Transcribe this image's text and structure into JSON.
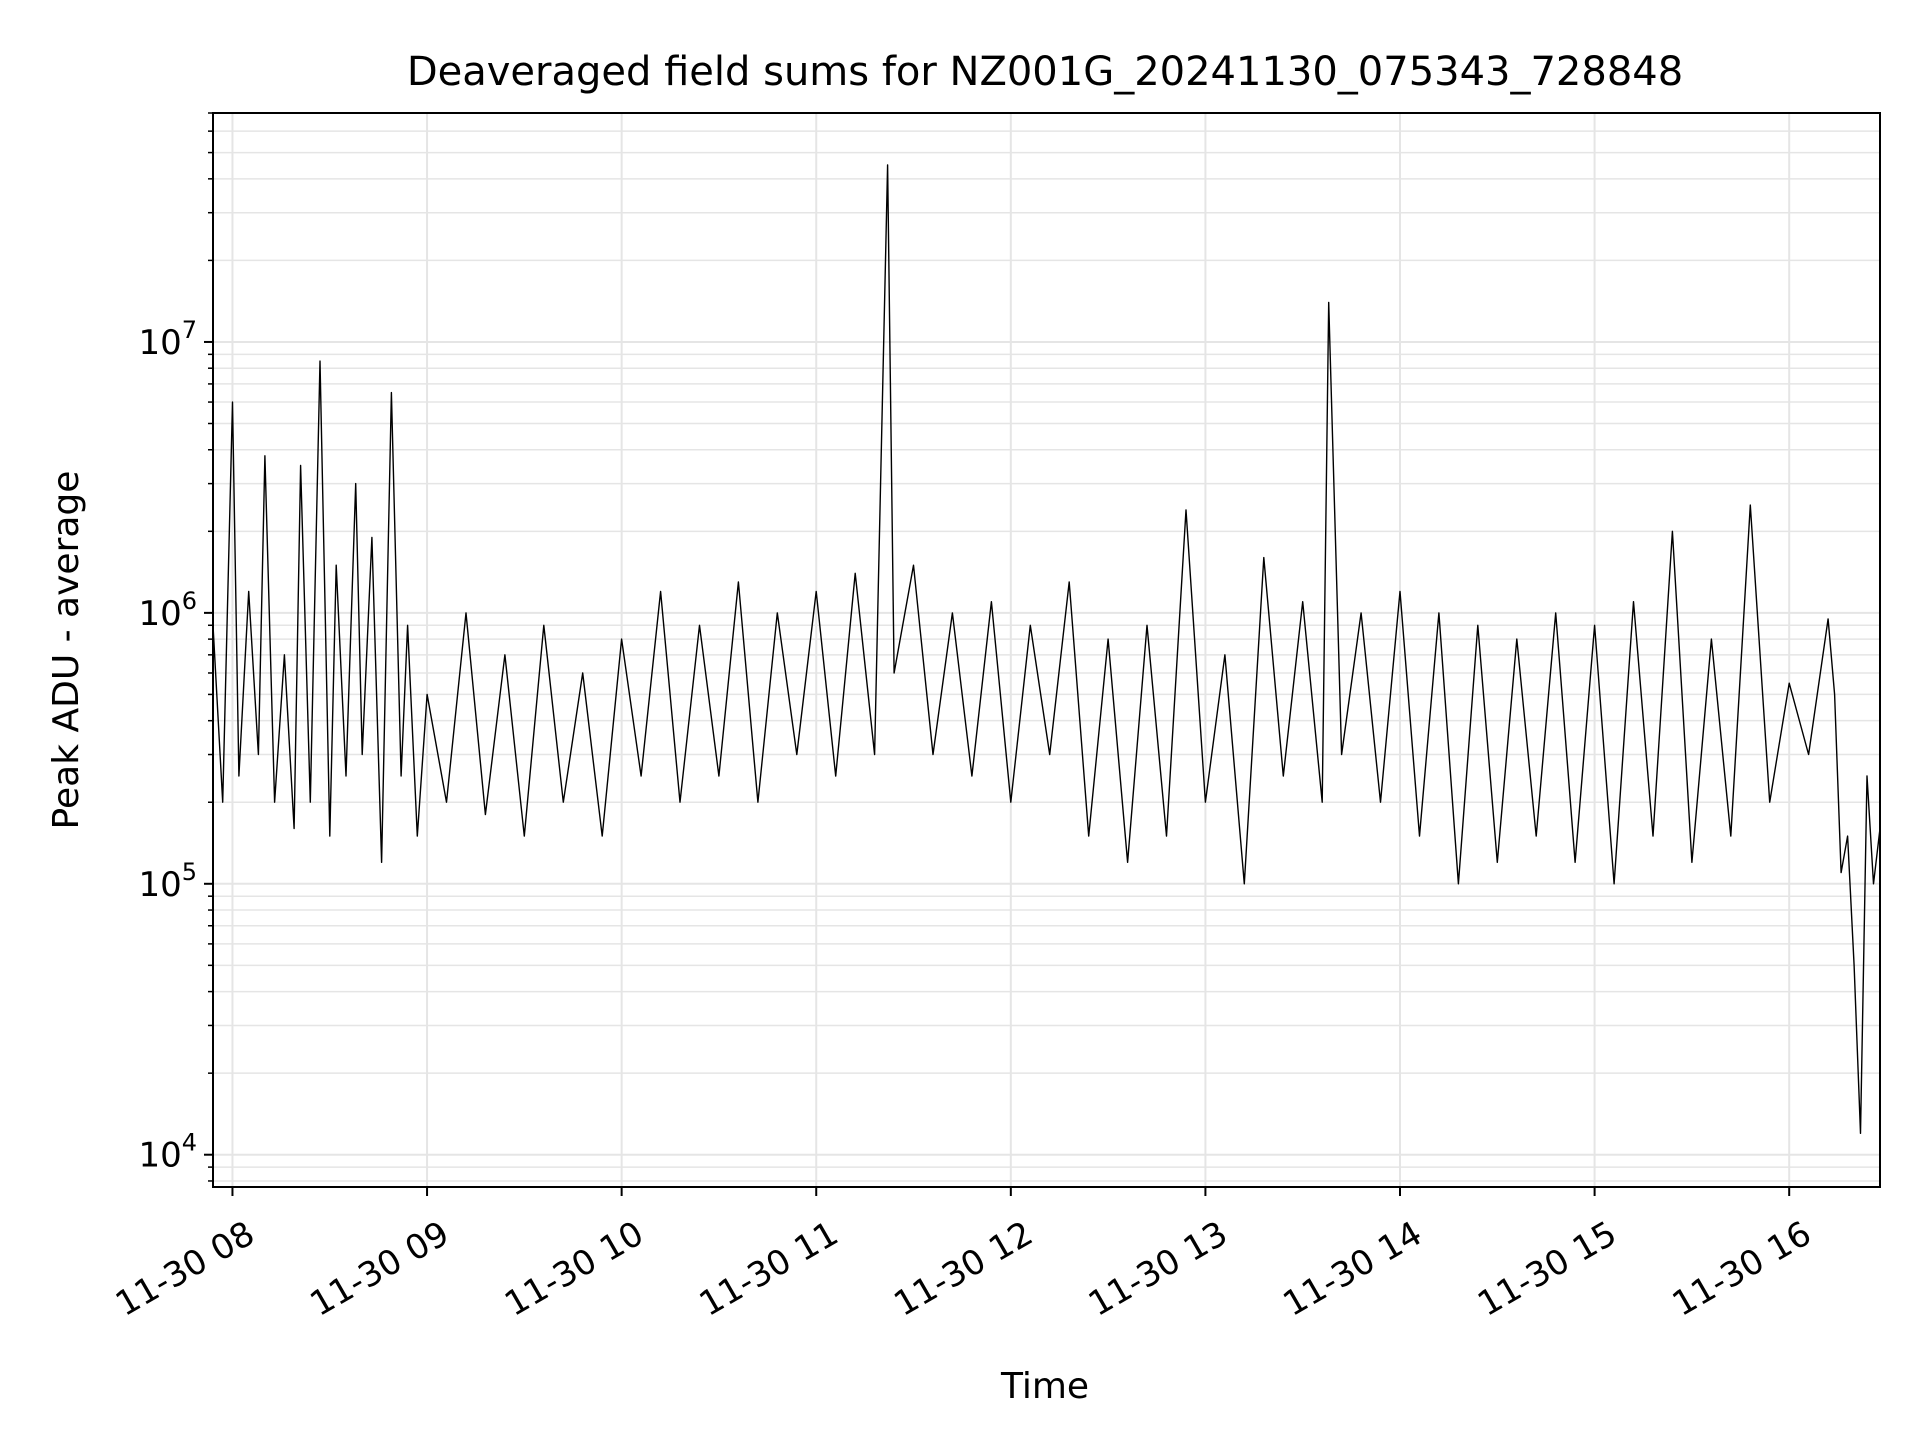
{
  "chart_data": {
    "type": "line",
    "title": "Deaveraged field sums for NZ001G_20241130_075343_728848",
    "xlabel": "Time",
    "ylabel": "Peak ADU - average",
    "y_scale": "log",
    "ylim": [
      7600,
      70000000
    ],
    "xlim": [
      "2024-11-30 07:54",
      "2024-11-30 16:28"
    ],
    "grid": true,
    "grid_minor": true,
    "line_color": "#000000",
    "grid_color": "#e5e5e5",
    "x_ticks": [
      {
        "value": "2024-11-30 08:00",
        "label": "11-30 08"
      },
      {
        "value": "2024-11-30 09:00",
        "label": "11-30 09"
      },
      {
        "value": "2024-11-30 10:00",
        "label": "11-30 10"
      },
      {
        "value": "2024-11-30 11:00",
        "label": "11-30 11"
      },
      {
        "value": "2024-11-30 12:00",
        "label": "11-30 12"
      },
      {
        "value": "2024-11-30 13:00",
        "label": "11-30 13"
      },
      {
        "value": "2024-11-30 14:00",
        "label": "11-30 14"
      },
      {
        "value": "2024-11-30 15:00",
        "label": "11-30 15"
      },
      {
        "value": "2024-11-30 16:00",
        "label": "11-30 16"
      }
    ],
    "y_ticks": [
      {
        "value": 10000,
        "base": "10",
        "exp": "4"
      },
      {
        "value": 100000,
        "base": "10",
        "exp": "5"
      },
      {
        "value": 1000000,
        "base": "10",
        "exp": "6"
      },
      {
        "value": 10000000,
        "base": "10",
        "exp": "7"
      }
    ],
    "series": [
      {
        "x": [
          "2024-11-30 07:54",
          "2024-11-30 07:57",
          "2024-11-30 08:00",
          "2024-11-30 08:02",
          "2024-11-30 08:05",
          "2024-11-30 08:08",
          "2024-11-30 08:10",
          "2024-11-30 08:13",
          "2024-11-30 08:16",
          "2024-11-30 08:19",
          "2024-11-30 08:21",
          "2024-11-30 08:24",
          "2024-11-30 08:27",
          "2024-11-30 08:30",
          "2024-11-30 08:32",
          "2024-11-30 08:35",
          "2024-11-30 08:38",
          "2024-11-30 08:40",
          "2024-11-30 08:43",
          "2024-11-30 08:46",
          "2024-11-30 08:49",
          "2024-11-30 08:52",
          "2024-11-30 08:54",
          "2024-11-30 08:57",
          "2024-11-30 09:00",
          "2024-11-30 09:06",
          "2024-11-30 09:12",
          "2024-11-30 09:18",
          "2024-11-30 09:24",
          "2024-11-30 09:30",
          "2024-11-30 09:36",
          "2024-11-30 09:42",
          "2024-11-30 09:48",
          "2024-11-30 09:54",
          "2024-11-30 10:00",
          "2024-11-30 10:06",
          "2024-11-30 10:12",
          "2024-11-30 10:18",
          "2024-11-30 10:24",
          "2024-11-30 10:30",
          "2024-11-30 10:36",
          "2024-11-30 10:42",
          "2024-11-30 10:48",
          "2024-11-30 10:54",
          "2024-11-30 11:00",
          "2024-11-30 11:06",
          "2024-11-30 11:12",
          "2024-11-30 11:18",
          "2024-11-30 11:22",
          "2024-11-30 11:24",
          "2024-11-30 11:30",
          "2024-11-30 11:36",
          "2024-11-30 11:42",
          "2024-11-30 11:48",
          "2024-11-30 11:54",
          "2024-11-30 12:00",
          "2024-11-30 12:06",
          "2024-11-30 12:12",
          "2024-11-30 12:18",
          "2024-11-30 12:24",
          "2024-11-30 12:30",
          "2024-11-30 12:36",
          "2024-11-30 12:42",
          "2024-11-30 12:48",
          "2024-11-30 12:54",
          "2024-11-30 13:00",
          "2024-11-30 13:06",
          "2024-11-30 13:12",
          "2024-11-30 13:18",
          "2024-11-30 13:24",
          "2024-11-30 13:30",
          "2024-11-30 13:36",
          "2024-11-30 13:38",
          "2024-11-30 13:42",
          "2024-11-30 13:48",
          "2024-11-30 13:54",
          "2024-11-30 14:00",
          "2024-11-30 14:06",
          "2024-11-30 14:12",
          "2024-11-30 14:18",
          "2024-11-30 14:24",
          "2024-11-30 14:30",
          "2024-11-30 14:36",
          "2024-11-30 14:42",
          "2024-11-30 14:48",
          "2024-11-30 14:54",
          "2024-11-30 15:00",
          "2024-11-30 15:06",
          "2024-11-30 15:12",
          "2024-11-30 15:18",
          "2024-11-30 15:24",
          "2024-11-30 15:30",
          "2024-11-30 15:36",
          "2024-11-30 15:42",
          "2024-11-30 15:48",
          "2024-11-30 15:54",
          "2024-11-30 16:00",
          "2024-11-30 16:06",
          "2024-11-30 16:12",
          "2024-11-30 16:14",
          "2024-11-30 16:16",
          "2024-11-30 16:18",
          "2024-11-30 16:20",
          "2024-11-30 16:22",
          "2024-11-30 16:24",
          "2024-11-30 16:26",
          "2024-11-30 16:28"
        ],
        "y": [
          900000,
          200000,
          6000000,
          250000,
          1200000,
          300000,
          3800000,
          200000,
          700000,
          160000,
          3500000,
          200000,
          8500000,
          150000,
          1500000,
          250000,
          3000000,
          300000,
          1900000,
          120000,
          6500000,
          250000,
          900000,
          150000,
          500000,
          200000,
          1000000,
          180000,
          700000,
          150000,
          900000,
          200000,
          600000,
          150000,
          800000,
          250000,
          1200000,
          200000,
          900000,
          250000,
          1300000,
          200000,
          1000000,
          300000,
          1200000,
          250000,
          1400000,
          300000,
          45000000,
          600000,
          1500000,
          300000,
          1000000,
          250000,
          1100000,
          200000,
          900000,
          300000,
          1300000,
          150000,
          800000,
          120000,
          900000,
          150000,
          2400000,
          200000,
          700000,
          100000,
          1600000,
          250000,
          1100000,
          200000,
          14000000,
          300000,
          1000000,
          200000,
          1200000,
          150000,
          1000000,
          100000,
          900000,
          120000,
          800000,
          150000,
          1000000,
          120000,
          900000,
          100000,
          1100000,
          150000,
          2000000,
          120000,
          800000,
          150000,
          2500000,
          200000,
          550000,
          300000,
          950000,
          500000,
          110000,
          150000,
          50000,
          12000,
          250000,
          100000,
          160000
        ]
      }
    ]
  }
}
